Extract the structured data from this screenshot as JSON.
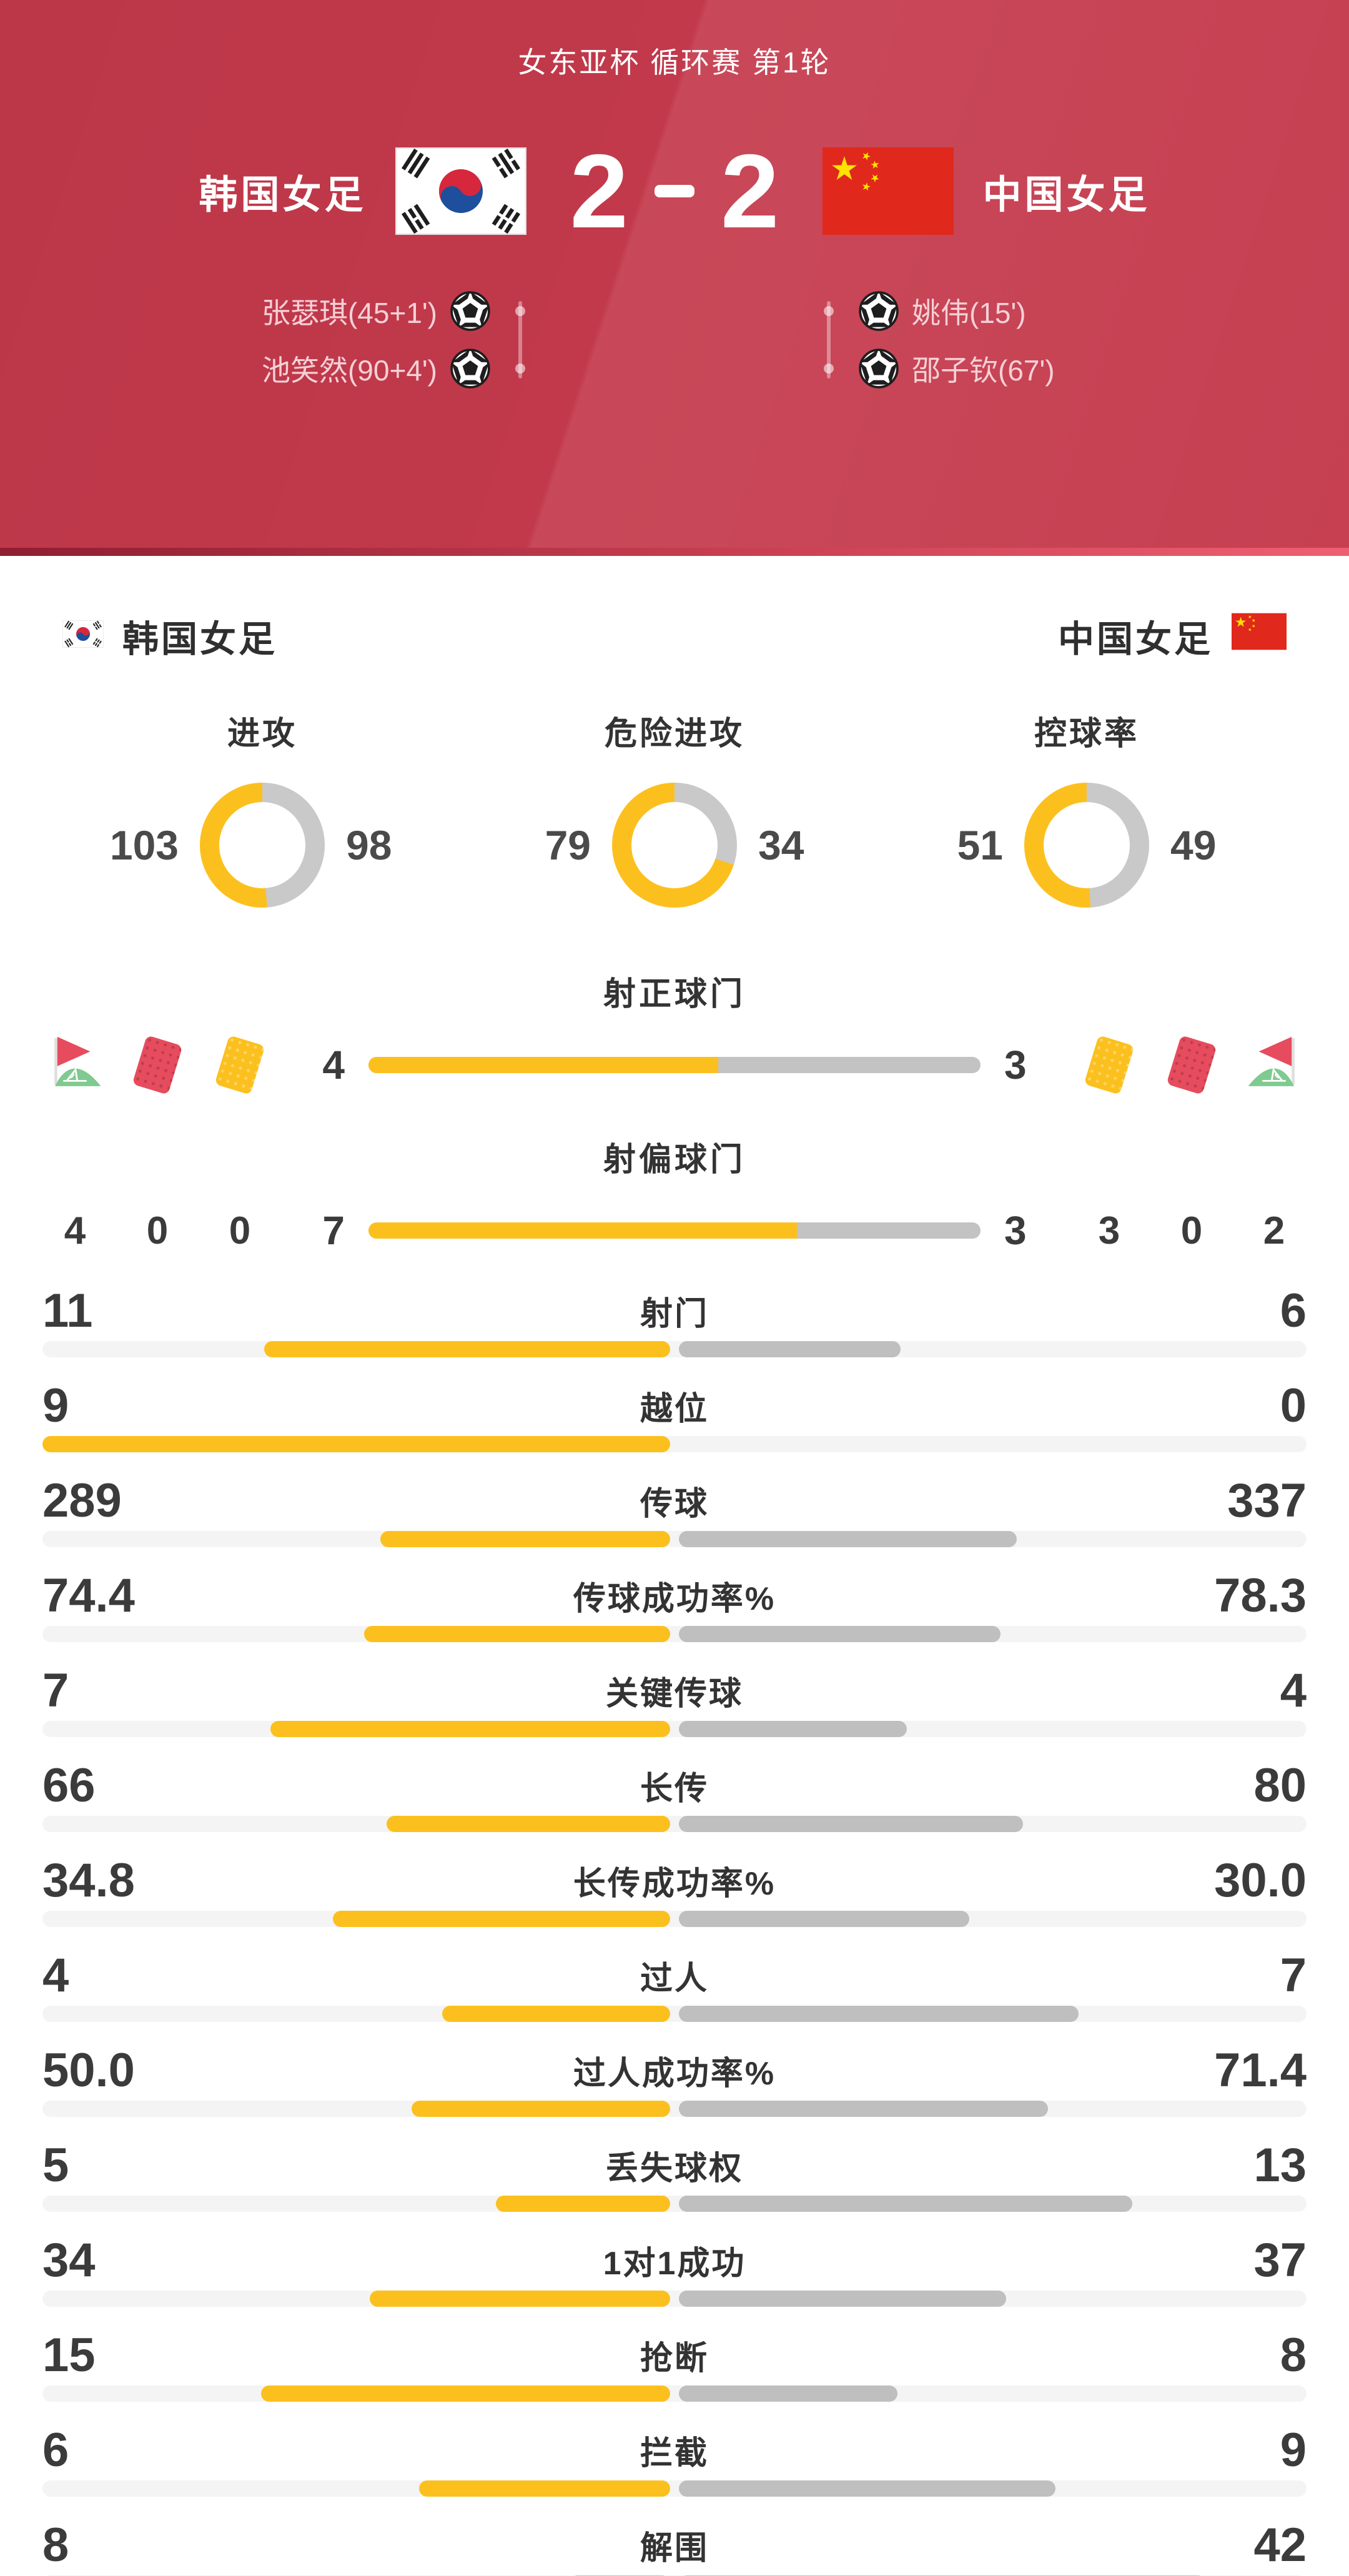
{
  "colors": {
    "header_red": "#c43a4c",
    "home_fill": "#fcc01e",
    "away_fill": "#bfbfbf",
    "donut_away_fill": "#c9c9c9",
    "track": "#f4f4f4",
    "text_dark": "#333333"
  },
  "header": {
    "competition": "女东亚杯 循环赛 第1轮",
    "home_team": "韩国女足",
    "away_team": "中国女足",
    "home_score": "2",
    "away_score": "2",
    "home_scorers": [
      "张瑟琪(45+1')",
      "池笑然(90+4')"
    ],
    "away_scorers": [
      "姚伟(15')",
      "邵子钦(67')"
    ]
  },
  "teams_bar": {
    "home": "韩国女足",
    "away": "中国女足"
  },
  "chart_data": {
    "type": "match-stats",
    "donuts": [
      {
        "label": "进攻",
        "home": 103,
        "away": 98
      },
      {
        "label": "危险进攻",
        "home": 79,
        "away": 34
      },
      {
        "label": "控球率",
        "home": 51,
        "away": 49
      }
    ],
    "discipline": {
      "home": {
        "corners": "4",
        "red_cards": "0",
        "yellow_cards": "0"
      },
      "away": {
        "corners": "2",
        "red_cards": "0",
        "yellow_cards": "3"
      }
    },
    "duels": [
      {
        "label": "射正球门",
        "home": "4",
        "away": "3"
      },
      {
        "label": "射偏球门",
        "home": "7",
        "away": "3"
      }
    ],
    "stats": [
      {
        "label": "射门",
        "home": "11",
        "away": "6"
      },
      {
        "label": "越位",
        "home": "9",
        "away": "0"
      },
      {
        "label": "传球",
        "home": "289",
        "away": "337"
      },
      {
        "label": "传球成功率%",
        "home": "74.4",
        "away": "78.3"
      },
      {
        "label": "关键传球",
        "home": "7",
        "away": "4"
      },
      {
        "label": "长传",
        "home": "66",
        "away": "80"
      },
      {
        "label": "长传成功率%",
        "home": "34.8",
        "away": "30.0"
      },
      {
        "label": "过人",
        "home": "4",
        "away": "7"
      },
      {
        "label": "过人成功率%",
        "home": "50.0",
        "away": "71.4"
      },
      {
        "label": "丢失球权",
        "home": "5",
        "away": "13"
      },
      {
        "label": "1对1成功",
        "home": "34",
        "away": "37"
      },
      {
        "label": "抢断",
        "home": "15",
        "away": "8"
      },
      {
        "label": "拦截",
        "home": "6",
        "away": "9"
      },
      {
        "label": "解围",
        "home": "8",
        "away": "42"
      }
    ]
  }
}
